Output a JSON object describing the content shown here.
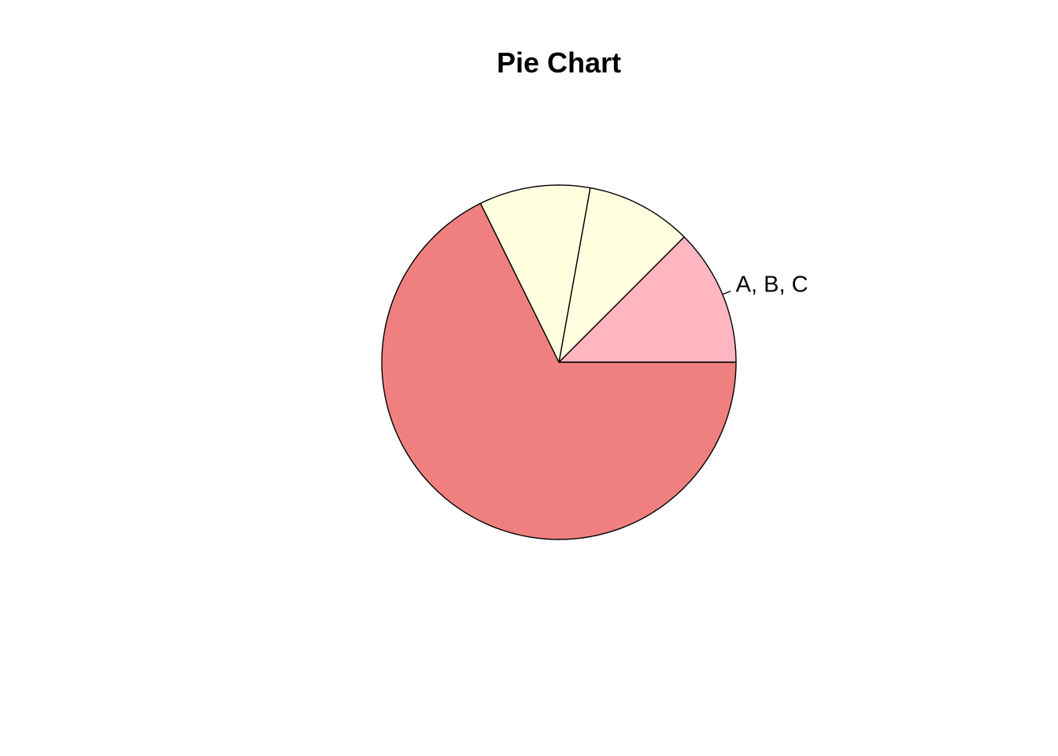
{
  "chart_data": {
    "type": "pie",
    "title": "Pie Chart",
    "slices": [
      {
        "label": "A, B, C",
        "value": 0.125,
        "color": "#FFB6C1"
      },
      {
        "label": "",
        "value": 0.0967,
        "color": "#FFFFE0"
      },
      {
        "label": "",
        "value": 0.1013,
        "color": "#FFFFE0"
      },
      {
        "label": "",
        "value": 0.677,
        "color": "#F08080"
      }
    ],
    "start_angle_deg": 0,
    "direction": "counterclockwise"
  }
}
